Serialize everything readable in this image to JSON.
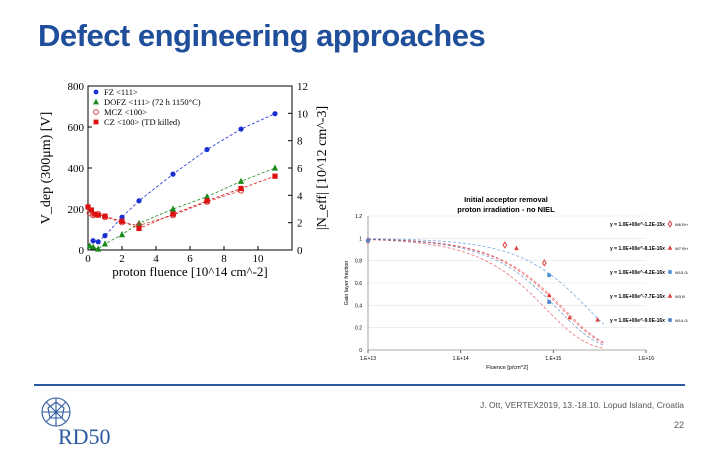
{
  "slide": {
    "title": "Defect engineering approaches",
    "citation": "J. Ott, VERTEX2019, 13.-18.10. Lopud Island, Croatia",
    "page_number": "22",
    "logo_text": "RD50",
    "accent": "#1f4e9a"
  },
  "chart_data": [
    {
      "type": "scatter",
      "ylabel": "V_dep (300μm) [V]",
      "y2label": "|N_eff| [10^12 cm^-3]",
      "xlabel": "proton fluence [10^14 cm^-2]",
      "xlim": [
        0,
        12
      ],
      "ylim": [
        0,
        800
      ],
      "y2lim": [
        0,
        12
      ],
      "xticks": [
        "0",
        "2",
        "4",
        "6",
        "8",
        "10"
      ],
      "yticks": [
        "0",
        "200",
        "400",
        "600",
        "800"
      ],
      "y2ticks": [
        "0",
        "2",
        "4",
        "6",
        "8",
        "10",
        "12"
      ],
      "legend_position": "top-left",
      "series": [
        {
          "name": "FZ       <111>",
          "color": "#1a2fd0",
          "marker": "circle",
          "x": [
            0.3,
            0.6,
            1.0,
            2.0,
            3.0,
            5.0,
            7.0,
            9.0,
            11.0
          ],
          "y": [
            45,
            40,
            70,
            160,
            240,
            370,
            490,
            590,
            665
          ]
        },
        {
          "name": "DOFZ <111> (72 h 1150°C)",
          "color": "#1a8a1a",
          "marker": "triangle",
          "x": [
            0.1,
            0.3,
            0.6,
            1.0,
            2.0,
            3.0,
            5.0,
            7.0,
            9.0,
            11.0
          ],
          "y": [
            20,
            15,
            5,
            30,
            75,
            130,
            200,
            260,
            335,
            400
          ]
        },
        {
          "name": "MCZ   <100>",
          "color": "#d04040",
          "marker": "open-circle",
          "x": [
            0.1,
            0.3,
            0.6,
            1.0,
            2.0,
            3.0,
            5.0,
            7.0,
            9.0
          ],
          "y": [
            180,
            170,
            175,
            160,
            135,
            120,
            170,
            235,
            290
          ]
        },
        {
          "name": "CZ     <100> (TD killed)",
          "color": "#dd1010",
          "marker": "square",
          "x": [
            0.0,
            0.2,
            0.4,
            0.6,
            1.0,
            2.0,
            3.0,
            5.0,
            7.0,
            9.0,
            11.0
          ],
          "y": [
            210,
            195,
            175,
            170,
            165,
            140,
            105,
            175,
            240,
            300,
            360
          ]
        }
      ]
    },
    {
      "type": "line",
      "title": "Initial acceptor removal",
      "subtitle": "proton irradiation - no NIEL",
      "xlabel": "Fluence [p/cm^2]",
      "ylabel": "Gain layer fraction",
      "xscale": "log",
      "xlim": [
        10000000000000.0,
        1e+16
      ],
      "ylim": [
        0,
        1.2
      ],
      "xticks": [
        "1.E+13",
        "1.E+14",
        "1.E+15",
        "1.E+16"
      ],
      "yticks": [
        "0",
        "0.2",
        "0.4",
        "0.6",
        "0.8",
        "1",
        "1.2"
      ],
      "series": [
        {
          "name": "W6 B+C",
          "color": "#e04040",
          "marker": "diamond",
          "equation": "y = 1.0E+00e^-1.2E-15x",
          "c": 1.2e-15,
          "x": [
            10000000000000.0,
            300000000000000.0,
            800000000000000.0
          ],
          "y": [
            0.98,
            0.94,
            0.78
          ]
        },
        {
          "name": "W7 B+C",
          "color": "#e04040",
          "marker": "triangle",
          "equation": "y = 1.0E+00e^-8.1E-16x",
          "c": 8.1e-16,
          "x": [
            10000000000000.0,
            400000000000000.0,
            1500000000000000.0,
            3000000000000000.0
          ],
          "y": [
            0.98,
            0.91,
            0.29,
            0.27
          ]
        },
        {
          "name": "W15 Ga+C",
          "color": "#4a90d9",
          "marker": "square",
          "equation": "y = 1.0E+00e^-4.2E-16x",
          "c": 4.2e-16,
          "x": [
            10000000000000.0,
            900000000000000.0
          ],
          "y": [
            0.98,
            0.67
          ]
        },
        {
          "name": "W3 B",
          "color": "#e04040",
          "marker": "triangle",
          "equation": "y = 1.0E+00e^-7.7E-16x",
          "c": 7.7e-16,
          "x": [
            900000000000000.0
          ],
          "y": [
            0.49
          ]
        },
        {
          "name": "W14 Ga",
          "color": "#4a7fc8",
          "marker": "square",
          "equation": "y = 1.0E+00e^-9.0E-16x",
          "c": 9e-16,
          "x": [
            900000000000000.0
          ],
          "y": [
            0.43
          ]
        }
      ]
    }
  ]
}
